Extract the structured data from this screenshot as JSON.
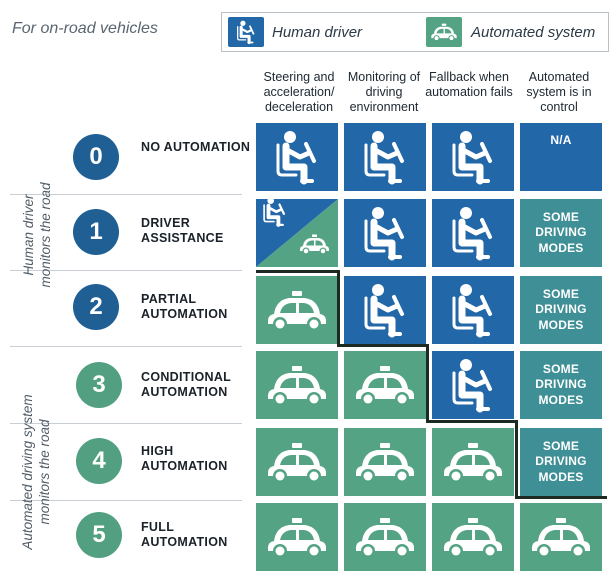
{
  "header": {
    "note": "For on-road vehicles"
  },
  "legend": {
    "human_label": "Human driver",
    "auto_label": "Automated system"
  },
  "columns": [
    "Steering and acceleration/ deceleration",
    "Monitoring of driving environment",
    "Fallback when automation fails",
    "Automated system is in control"
  ],
  "groups": {
    "human": "Human driver monitors the road",
    "automated": "Automated driving system monitors the road"
  },
  "levels": [
    {
      "number": "0",
      "name": "NO AUTOMATION",
      "in_control": "N/A"
    },
    {
      "number": "1",
      "name": "DRIVER ASSISTANCE",
      "in_control": "SOME DRIVING MODES"
    },
    {
      "number": "2",
      "name": "PARTIAL AUTOMATION",
      "in_control": "SOME DRIVING MODES"
    },
    {
      "number": "3",
      "name": "CONDITIONAL AUTOMATION",
      "in_control": "SOME DRIVING MODES"
    },
    {
      "number": "4",
      "name": "HIGH AUTOMATION",
      "in_control": "SOME DRIVING MODES"
    },
    {
      "number": "5",
      "name": "FULL AUTOMATION",
      "in_control": ""
    }
  ],
  "icons": {
    "human": "human-driver-icon",
    "automated": "automated-car-icon",
    "shared": "human-and-automated-icon"
  },
  "colors": {
    "human_blue": "#2267a8",
    "automated_green": "#55a385",
    "mode_teal": "#3f8f96",
    "circle_blue": "#1f5f94",
    "circle_green": "#52a081"
  }
}
